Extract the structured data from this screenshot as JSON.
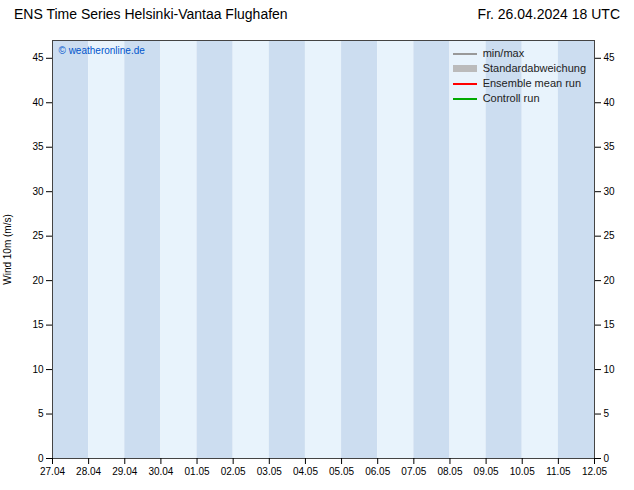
{
  "chart_data": {
    "type": "line",
    "title": "ENS Time Series Helsinki-Vantaa Flughafen",
    "subtitle": "Fr. 26.04.2024 18 UTC",
    "y_label": "Wind 10m (m/s)",
    "categories": [
      "27.04",
      "28.04",
      "29.04",
      "30.04",
      "01.05",
      "02.05",
      "03.05",
      "04.05",
      "05.05",
      "06.05",
      "07.05",
      "08.05",
      "09.05",
      "10.05",
      "11.05",
      "12.05"
    ],
    "series": [
      {
        "name": "min/max",
        "color": "#999999",
        "values": [
          null,
          null,
          null,
          null,
          null,
          null,
          null,
          null,
          null,
          null,
          null,
          null,
          null,
          null,
          null,
          null
        ]
      },
      {
        "name": "Standardabweichung",
        "color": "#bbbbbb",
        "values": [
          null,
          null,
          null,
          null,
          null,
          null,
          null,
          null,
          null,
          null,
          null,
          null,
          null,
          null,
          null,
          null
        ]
      },
      {
        "name": "Ensemble mean run",
        "color": "#ff0000",
        "values": [
          null,
          null,
          null,
          null,
          null,
          null,
          null,
          null,
          null,
          null,
          null,
          null,
          null,
          null,
          null,
          null
        ]
      },
      {
        "name": "Controll run",
        "color": "#00aa00",
        "values": [
          null,
          null,
          null,
          null,
          null,
          null,
          null,
          null,
          null,
          null,
          null,
          null,
          null,
          null,
          null,
          null
        ]
      }
    ],
    "ylim": [
      0,
      47
    ],
    "yticks": [
      0,
      5,
      10,
      15,
      20,
      25,
      30,
      35,
      40,
      45
    ],
    "annotations": [
      {
        "text": "© weatheronline.de",
        "color": "#0055cc"
      }
    ],
    "grid": false,
    "legend": "upper right"
  }
}
